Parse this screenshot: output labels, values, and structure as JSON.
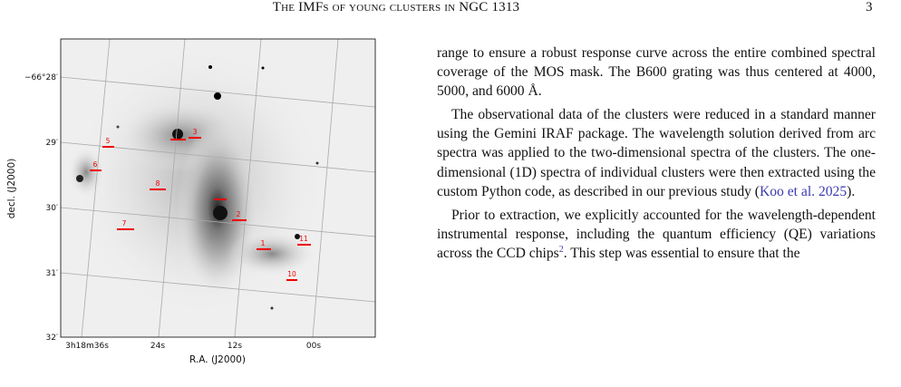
{
  "header": {
    "title": "The IMFs of young clusters in NGC 1313",
    "page_number": "3"
  },
  "figure": {
    "y_label": "decl. (J2000)",
    "x_label": "R.A. (J2000)",
    "y_ticks": [
      "−66°28′",
      "29′",
      "30′",
      "31′",
      "32′"
    ],
    "x_ticks": [
      "3h18m36s",
      "24s",
      "12s",
      "00s"
    ],
    "cluster_labels": [
      "3",
      "5",
      "6",
      "8",
      "2",
      "7",
      "1",
      "11",
      "10"
    ]
  },
  "body": {
    "paragraphs": [
      {
        "text": "range to ensure a robust response curve across the entire combined spectral coverage of the MOS mask. The B600 grating was thus centered at 4000, 5000, and 6000 Å."
      },
      {
        "text": "The observational data of the clusters were reduced in a standard manner using the Gemini IRAF package. The wavelength solution derived from arc spectra was applied to the two-dimensional spectra of the clusters. The one-dimensional (1D) spectra of individual clusters were then extracted using the custom Python code, as described in our previous study (",
        "citation": "Koo et al. 2025",
        "text_after": ")."
      },
      {
        "text": "Prior to extraction, we explicitly accounted for the wavelength-dependent instrumental response, including the quantum efficiency (QE) variations across the CCD chips",
        "footnote": "2",
        "text_after": ". This step was essential to ensure that the"
      }
    ]
  }
}
